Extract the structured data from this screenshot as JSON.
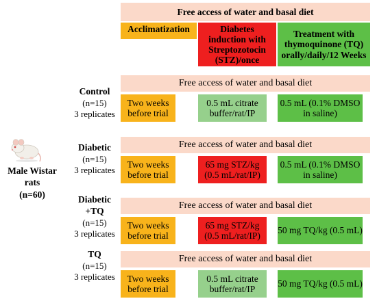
{
  "header": {
    "top": "Free access of water and basal diet",
    "col1": "Acclimatization",
    "col2": "Diabetes induction with Streptozotocin (STZ)/once",
    "col3": "Treatment with thymoquinone (TQ) orally/daily/12 Weeks"
  },
  "subject": {
    "name_line1": "Male Wistar",
    "name_line2": "rats",
    "count": "(n=60)"
  },
  "groups": [
    {
      "name": "Control",
      "n": "(n=15)",
      "replicates": "3 replicates",
      "diet": "Free access of water and basal diet",
      "acclimatization": "Two weeks before trial",
      "induction": "0.5 mL citrate buffer/rat/IP",
      "treatment": "0.5 mL (0.1% DMSO in saline)"
    },
    {
      "name": "Diabetic",
      "n": "(n=15)",
      "replicates": "3 replicates",
      "diet": "Free access of water and basal diet",
      "acclimatization": "Two weeks before trial",
      "induction": "65 mg STZ/kg (0.5 mL/rat/IP)",
      "treatment": "0.5 mL (0.1% DMSO in saline)"
    },
    {
      "name": "Diabetic +TQ",
      "n": "(n=15)",
      "replicates": "3 replicates",
      "diet": "Free access of water and basal diet",
      "acclimatization": "Two weeks before trial",
      "induction": "65 mg STZ/kg (0.5 mL/rat/IP)",
      "treatment": "50 mg TQ/kg (0.5 mL)"
    },
    {
      "name": "TQ",
      "n": "(n=15)",
      "replicates": "3 replicates",
      "diet": "Free access of water and basal diet",
      "acclimatization": "Two weeks before trial",
      "induction": "0.5 mL citrate buffer/rat/IP",
      "treatment": "50 mg TQ/kg (0.5 mL)"
    }
  ],
  "colors": {
    "diet": "#fbd9c9",
    "acclimatization": "#f8b31b",
    "induction_stz": "#ee1f1f",
    "induction_buffer": "#96d08c",
    "treatment": "#5dbf47"
  },
  "icons": {
    "animal": "rat-icon"
  }
}
